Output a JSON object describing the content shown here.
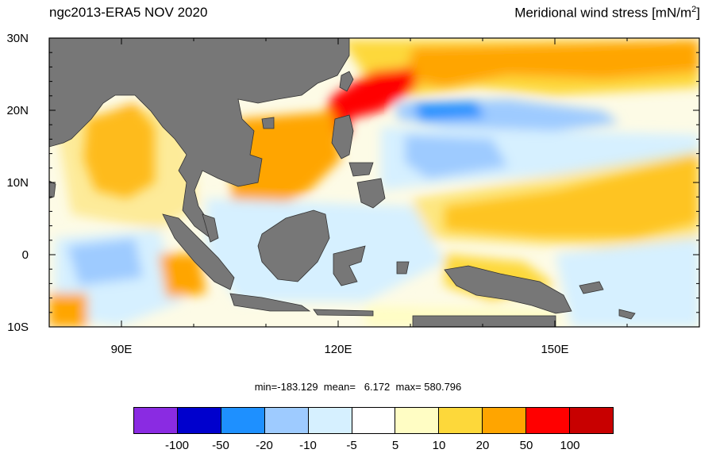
{
  "header": {
    "left_title": "ngc2013-ERA5  NOV 2020",
    "right_title_main": "Meridional wind stress [mN/m",
    "right_title_sup": "2",
    "right_title_end": "]"
  },
  "map": {
    "lat_labels": [
      "30N",
      "20N",
      "10N",
      "0",
      "10S"
    ],
    "lon_labels": [
      "90E",
      "120E",
      "150E"
    ],
    "land_color": "#777777"
  },
  "stats": {
    "text": "min=-183.129  mean=   6.172  max= 580.796"
  },
  "colorbar": {
    "colors": [
      "#8a2be2",
      "#0000cd",
      "#1e90ff",
      "#9ecbff",
      "#d6f0ff",
      "#ffffff",
      "#fffdc4",
      "#fdd83a",
      "#ffa500",
      "#ff0000",
      "#c80000"
    ],
    "labels": [
      "-100",
      "-50",
      "-20",
      "-10",
      "-5",
      "5",
      "10",
      "20",
      "50",
      "100"
    ]
  }
}
